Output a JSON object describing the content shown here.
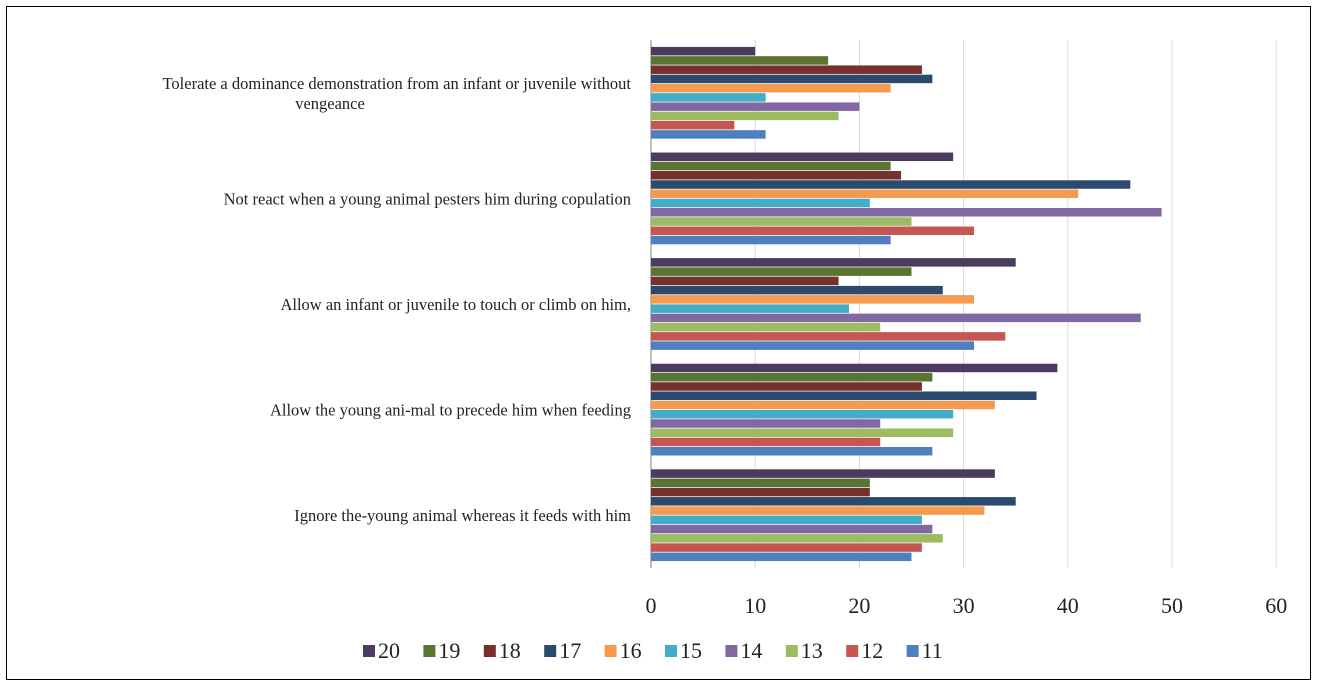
{
  "chart_data": {
    "type": "bar",
    "orientation": "horizontal",
    "title": "",
    "xlabel": "",
    "ylabel": "",
    "xlim": [
      0,
      60
    ],
    "x_ticks": [
      0,
      10,
      20,
      30,
      40,
      50,
      60
    ],
    "grid": "vertical",
    "legend_position": "bottom",
    "categories": [
      {
        "lines": [
          "Tolerate a dominance demonstration from an infant or juvenile without",
          "vengeance"
        ]
      },
      {
        "lines": [
          "Not react when a young animal pesters him during copulation"
        ]
      },
      {
        "lines": [
          "Allow an infant or juvenile to touch or climb on him,"
        ]
      },
      {
        "lines": [
          "Allow the young ani-mal to precede him when feeding"
        ]
      },
      {
        "lines": [
          "Ignore the-young animal whereas it feeds with him"
        ]
      }
    ],
    "series": [
      {
        "name": "20",
        "color": "#4b3b5e",
        "values": [
          10,
          29,
          35,
          39,
          33
        ]
      },
      {
        "name": "19",
        "color": "#5a7431",
        "values": [
          17,
          23,
          25,
          27,
          21
        ]
      },
      {
        "name": "18",
        "color": "#76302d",
        "values": [
          26,
          24,
          18,
          26,
          21
        ]
      },
      {
        "name": "17",
        "color": "#2c4a6e",
        "values": [
          27,
          46,
          28,
          37,
          35
        ]
      },
      {
        "name": "16",
        "color": "#f59a4f",
        "values": [
          23,
          41,
          31,
          33,
          32
        ]
      },
      {
        "name": "15",
        "color": "#41adc6",
        "values": [
          11,
          21,
          19,
          29,
          26
        ]
      },
      {
        "name": "14",
        "color": "#8268a3",
        "values": [
          20,
          49,
          47,
          22,
          27
        ]
      },
      {
        "name": "13",
        "color": "#9dbb60",
        "values": [
          18,
          25,
          22,
          29,
          28
        ]
      },
      {
        "name": "12",
        "color": "#c55652",
        "values": [
          8,
          31,
          34,
          22,
          26
        ]
      },
      {
        "name": "11",
        "color": "#4e7fbf",
        "values": [
          11,
          23,
          31,
          27,
          25
        ]
      }
    ]
  }
}
